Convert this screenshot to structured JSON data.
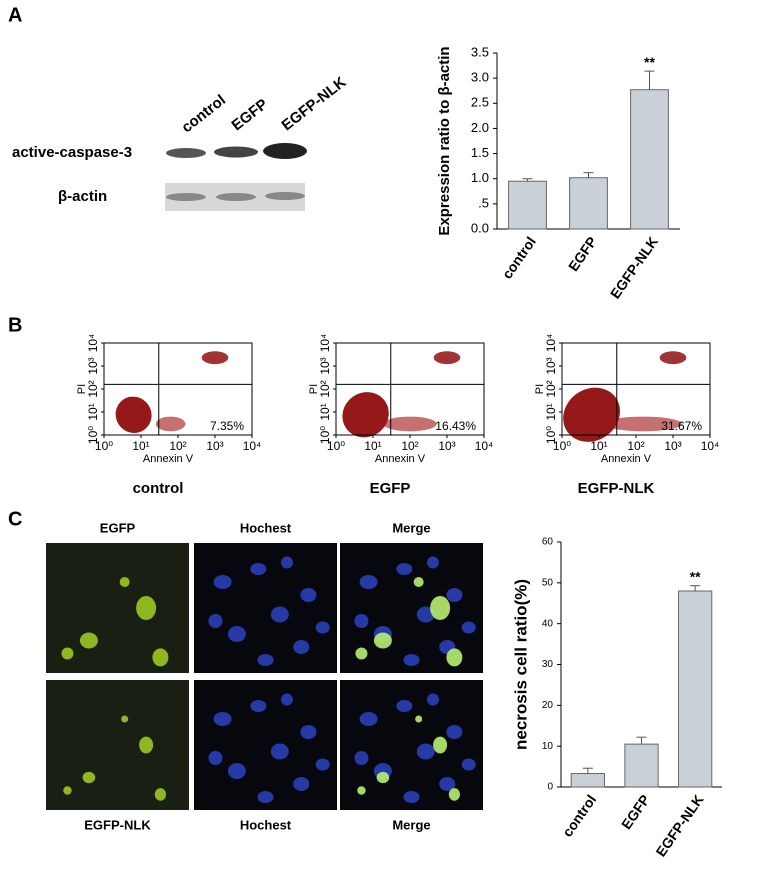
{
  "panel_labels": [
    "A",
    "B",
    "C"
  ],
  "blot": {
    "lanes": [
      "control",
      "EGFP",
      "EGFP-NLK"
    ],
    "rows": [
      "active-caspase-3",
      "β-actin"
    ]
  },
  "chart_data": [
    {
      "type": "bar",
      "ylabel": "Expression ratio to β-actin",
      "categories": [
        "control",
        "EGFP",
        "EGFP-NLK"
      ],
      "values": [
        0.95,
        1.02,
        2.77
      ],
      "errors": [
        0.05,
        0.1,
        0.37
      ],
      "significance": [
        null,
        null,
        "**"
      ],
      "color": "#c9d0d8",
      "ylim": [
        0,
        3.5
      ],
      "yticks": [
        {
          "value": 0,
          "label": "0.0"
        },
        {
          "value": 0.5,
          "label": ".5"
        },
        {
          "value": 1,
          "label": "1.0"
        },
        1.5,
        {
          "value": 2,
          "label": "2.0"
        },
        2.5,
        {
          "value": 3,
          "label": "3.0"
        },
        3.5
      ]
    },
    {
      "type": "bar",
      "ylabel": "necrosis cell ratio(%)",
      "categories": [
        "control",
        "EGFP",
        "EGFP-NLK"
      ],
      "values": [
        3.3,
        10.5,
        48
      ],
      "errors": [
        1.3,
        1.7,
        1.3
      ],
      "significance": [
        null,
        null,
        "**"
      ],
      "color": "#c9d0d8",
      "ylim": [
        0,
        60
      ],
      "yticks": [
        0,
        10,
        20,
        30,
        40,
        50,
        60
      ]
    }
  ],
  "flow": {
    "ylabel": "PI",
    "xlabel": "Annexin V",
    "ticks": [
      {
        "value": 1,
        "label": "10⁰"
      },
      {
        "value": 10,
        "label": "10¹"
      },
      {
        "value": 100,
        "label": "10²"
      },
      {
        "value": 1000,
        "label": "10³"
      },
      {
        "value": 10000,
        "label": "10⁴"
      }
    ],
    "plots": [
      {
        "caption": "control",
        "percent": "7.35%"
      },
      {
        "caption": "EGFP",
        "percent": "16.43%"
      },
      {
        "caption": "EGFP-NLK",
        "percent": "31.67%"
      }
    ]
  },
  "micrographs": {
    "top": [
      "EGFP",
      "Hochest",
      "Merge"
    ],
    "bottom": [
      "EGFP-NLK",
      "Hochest",
      "Merge"
    ]
  }
}
